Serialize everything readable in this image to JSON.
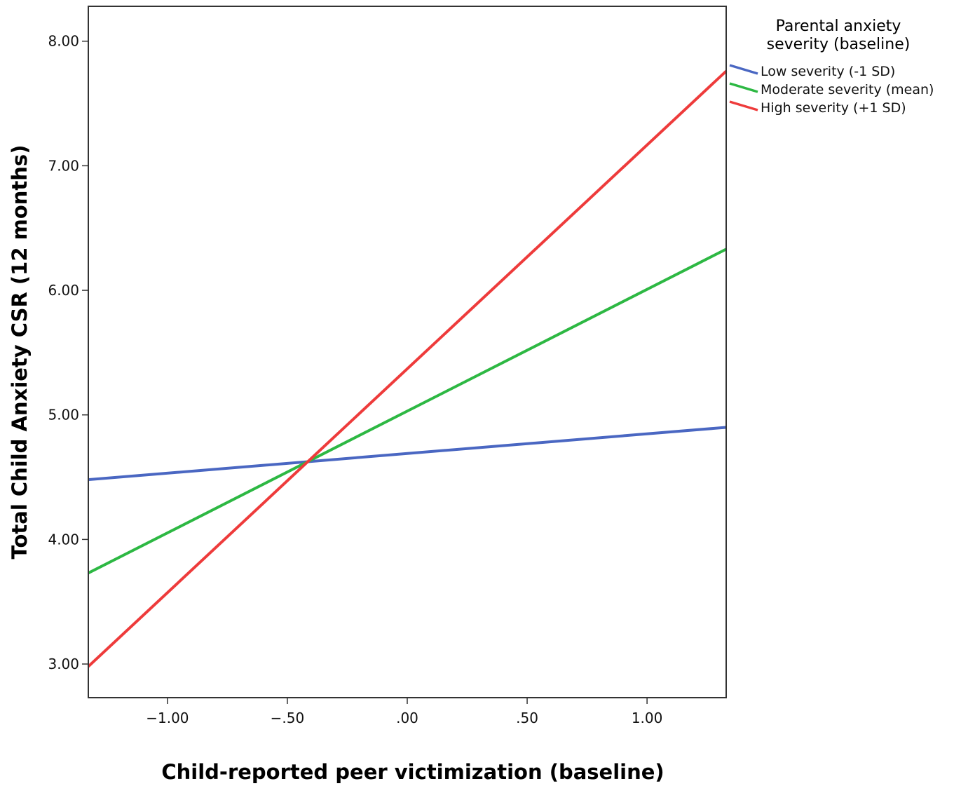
{
  "chart_data": {
    "type": "line",
    "title": "",
    "xlabel": "Child-reported peer victimization (baseline)",
    "ylabel": "Total Child Anxiety CSR (12 months)",
    "xlim": [
      -1.33,
      1.33
    ],
    "ylim": [
      2.73,
      8.28
    ],
    "x_ticks": [
      -1.0,
      -0.5,
      0.0,
      0.5,
      1.0
    ],
    "x_tick_labels": [
      "-1.00",
      "-.50",
      ".00",
      ".50",
      "1.00"
    ],
    "y_ticks": [
      3.0,
      4.0,
      5.0,
      6.0,
      7.0,
      8.0
    ],
    "y_tick_labels": [
      "3.00",
      "4.00",
      "5.00",
      "6.00",
      "7.00",
      "8.00"
    ],
    "grid": false,
    "legend": {
      "title_lines": [
        "Parental anxiety",
        "severity (baseline)"
      ],
      "placement": "outside-right"
    },
    "series": [
      {
        "name": "Low severity (-1 SD)",
        "color": "#4a67c2",
        "x": [
          -1.33,
          1.33
        ],
        "y": [
          4.48,
          4.9
        ]
      },
      {
        "name": "Moderate severity (mean)",
        "color": "#2db843",
        "x": [
          -1.33,
          1.33
        ],
        "y": [
          3.73,
          6.33
        ]
      },
      {
        "name": "High severity (+1 SD)",
        "color": "#ee3b3b",
        "x": [
          -1.33,
          1.33
        ],
        "y": [
          2.98,
          7.76
        ]
      }
    ]
  }
}
